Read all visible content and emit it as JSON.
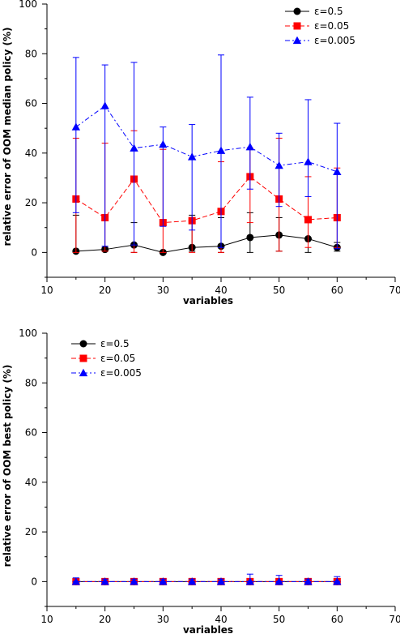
{
  "chart_data": [
    {
      "type": "line",
      "xlabel": "variables",
      "ylabel": "relative error of OOM median policy (%)",
      "xlim": [
        10,
        70
      ],
      "ylim": [
        -10,
        100
      ],
      "xticks": [
        10,
        20,
        30,
        40,
        50,
        60,
        70
      ],
      "yticks": [
        0,
        20,
        40,
        60,
        80,
        100
      ],
      "legend_position": "top-right",
      "x": [
        15,
        20,
        25,
        30,
        35,
        40,
        45,
        50,
        55,
        60
      ],
      "series": [
        {
          "name": "ε=0.5",
          "color": "#000000",
          "marker": "circle",
          "line": "solid",
          "values": [
            0.5,
            1.2,
            3.0,
            0.0,
            2.0,
            2.5,
            6.0,
            7.0,
            5.5,
            2.0
          ],
          "error": [
            [
              0.0,
              15.0
            ],
            [
              0.5,
              2.0
            ],
            [
              0.0,
              12.0
            ],
            [
              0.0,
              0.5
            ],
            [
              0.5,
              15.0
            ],
            [
              0.0,
              14.0
            ],
            [
              0.0,
              16.0
            ],
            [
              0.5,
              14.0
            ],
            [
              0.0,
              13.0
            ],
            [
              0.5,
              4.0
            ]
          ]
        },
        {
          "name": "ε=0.05",
          "color": "#ff0000",
          "marker": "square",
          "line": "dashed",
          "values": [
            21.5,
            14.0,
            29.5,
            12.0,
            12.8,
            16.5,
            30.5,
            21.5,
            13.2,
            14.0
          ],
          "error": [
            [
              0.0,
              46.0
            ],
            [
              0.5,
              44.0
            ],
            [
              0.0,
              49.0
            ],
            [
              0.0,
              41.5
            ],
            [
              0.0,
              14.0
            ],
            [
              0.0,
              36.5
            ],
            [
              12.0,
              42.0
            ],
            [
              0.5,
              46.0
            ],
            [
              2.0,
              30.5
            ],
            [
              2.0,
              34.0
            ]
          ]
        },
        {
          "name": "ε=0.005",
          "color": "#0000ff",
          "marker": "triangle",
          "line": "dash-dot",
          "values": [
            50.5,
            59.0,
            42.0,
            43.5,
            38.5,
            41.0,
            42.5,
            35.0,
            36.5,
            32.5
          ],
          "error": [
            [
              16.0,
              78.5
            ],
            [
              2.5,
              75.5
            ],
            [
              3.0,
              76.5
            ],
            [
              10.5,
              50.5
            ],
            [
              9.0,
              51.5
            ],
            [
              2.0,
              79.5
            ],
            [
              25.5,
              62.5
            ],
            [
              18.5,
              48.0
            ],
            [
              22.5,
              61.5
            ],
            [
              1.5,
              52.0
            ]
          ]
        }
      ]
    },
    {
      "type": "line",
      "xlabel": "variables",
      "ylabel": "relative error of OOM best policy (%)",
      "xlim": [
        10,
        70
      ],
      "ylim": [
        -10,
        100
      ],
      "xticks": [
        10,
        20,
        30,
        40,
        50,
        60,
        70
      ],
      "yticks": [
        0,
        20,
        40,
        60,
        80,
        100
      ],
      "legend_position": "top-left",
      "x": [
        15,
        20,
        25,
        30,
        35,
        40,
        45,
        50,
        55,
        60
      ],
      "series": [
        {
          "name": "ε=0.5",
          "color": "#000000",
          "marker": "circle",
          "line": "solid",
          "values": [
            0,
            0,
            0,
            0,
            0,
            0,
            0,
            0,
            0,
            0
          ],
          "error": [
            [
              0,
              0.5
            ],
            [
              0,
              0.5
            ],
            [
              0,
              0.5
            ],
            [
              0,
              0.5
            ],
            [
              0,
              0.5
            ],
            [
              0,
              0.5
            ],
            [
              0,
              0.5
            ],
            [
              0,
              0.5
            ],
            [
              0,
              0.5
            ],
            [
              0,
              0.5
            ]
          ]
        },
        {
          "name": "ε=0.05",
          "color": "#ff0000",
          "marker": "square",
          "line": "dashed",
          "values": [
            0,
            0,
            0,
            0,
            0,
            0,
            0,
            0,
            0,
            0
          ],
          "error": [
            [
              0,
              1
            ],
            [
              0,
              1
            ],
            [
              0,
              1
            ],
            [
              0,
              1
            ],
            [
              0,
              1
            ],
            [
              0,
              1
            ],
            [
              0,
              1
            ],
            [
              0,
              1
            ],
            [
              0,
              1
            ],
            [
              0,
              1
            ]
          ]
        },
        {
          "name": "ε=0.005",
          "color": "#0000ff",
          "marker": "triangle",
          "line": "dash-dot",
          "values": [
            0,
            0,
            0,
            0,
            0,
            0,
            0,
            0,
            0,
            0
          ],
          "error": [
            [
              0,
              1.5
            ],
            [
              0,
              1
            ],
            [
              0,
              1
            ],
            [
              0,
              1
            ],
            [
              0,
              1
            ],
            [
              0,
              1
            ],
            [
              0,
              3
            ],
            [
              0,
              2.5
            ],
            [
              0,
              1
            ],
            [
              0,
              2
            ]
          ]
        }
      ]
    }
  ]
}
